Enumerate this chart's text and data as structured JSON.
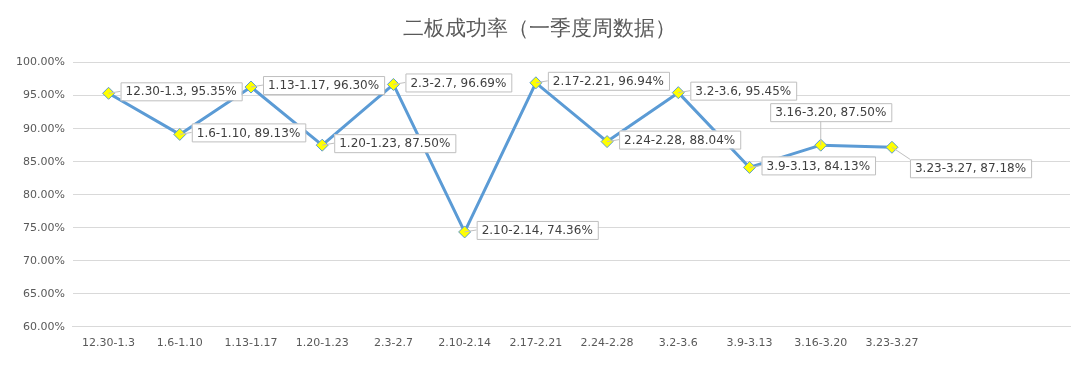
{
  "chart_data": {
    "type": "line",
    "title": "二板成功率（一季度周数据）",
    "categories": [
      "12.30-1.3",
      "1.6-1.10",
      "1.13-1.17",
      "1.20-1.23",
      "2.3-2.7",
      "2.10-2.14",
      "2.17-2.21",
      "2.24-2.28",
      "3.2-3.6",
      "3.9-3.13",
      "3.16-3.20",
      "3.23-3.27",
      null,
      null
    ],
    "series": [
      {
        "color": "#5b9bd5",
        "values": [
          95.35,
          89.13,
          96.3,
          87.5,
          96.69,
          74.36,
          96.94,
          88.04,
          95.45,
          84.13,
          87.5,
          87.18,
          null,
          null
        ],
        "value_labels": [
          "12.30-1.3, 95.35%",
          "1.6-1.10, 89.13%",
          "1.13-1.17, 96.30%",
          "1.20-1.23, 87.50%",
          "2.3-2.7, 96.69%",
          "2.10-2.14, 74.36%",
          "2.17-2.21, 96.94%",
          "2.24-2.28, 88.04%",
          "3.2-3.6, 95.45%",
          "3.9-3.13, 84.13%",
          "3.16-3.20, 87.50%",
          "3.23-3.27, 87.18%",
          null,
          null
        ]
      }
    ],
    "ylim": [
      60,
      100
    ],
    "yticks": [
      {
        "value": 60,
        "label": "60.00%"
      },
      {
        "value": 65,
        "label": "65.00%"
      },
      {
        "value": 70,
        "label": "70.00%"
      },
      {
        "value": 75,
        "label": "75.00%"
      },
      {
        "value": 80,
        "label": "80.00%"
      },
      {
        "value": 85,
        "label": "85.00%"
      },
      {
        "value": 90,
        "label": "90.00%"
      },
      {
        "value": 95,
        "label": "95.00%"
      },
      {
        "value": 100,
        "label": "100.00%"
      }
    ],
    "grid": "y",
    "legend": false,
    "marker": "diamond",
    "line_style": "solid"
  }
}
